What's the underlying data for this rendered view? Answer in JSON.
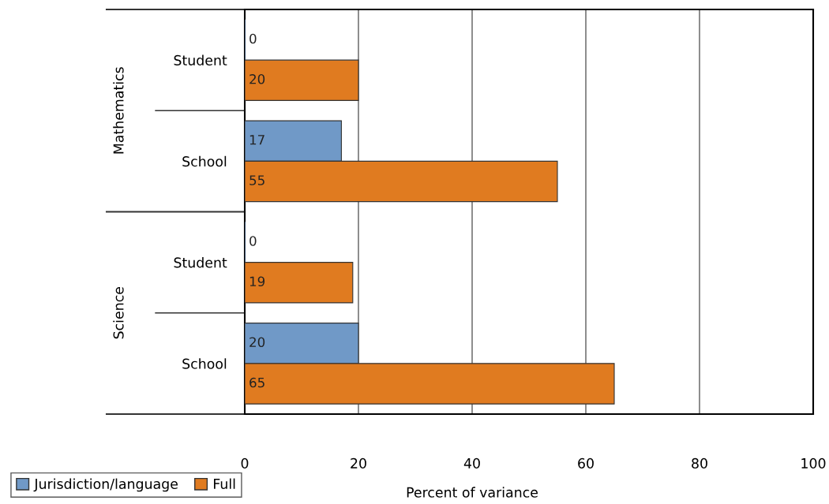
{
  "chart_data": {
    "type": "bar",
    "orientation": "horizontal",
    "xlabel": "Percent of variance",
    "categories": [
      "Student",
      "School",
      "Student",
      "School"
    ],
    "annotations": [
      "Mathematics",
      "Science"
    ],
    "series": [
      {
        "name": "Jurisdiction/language",
        "color": "#7099c7",
        "values": [
          0,
          17,
          0,
          20
        ]
      },
      {
        "name": "Full",
        "color": "#e07b20",
        "values": [
          20,
          55,
          19,
          65
        ]
      }
    ],
    "xlim": [
      0,
      100
    ],
    "xticks": [
      0,
      20,
      40,
      60,
      80,
      100
    ],
    "grid": "x",
    "data_labels": true,
    "legend": "bottom left"
  }
}
